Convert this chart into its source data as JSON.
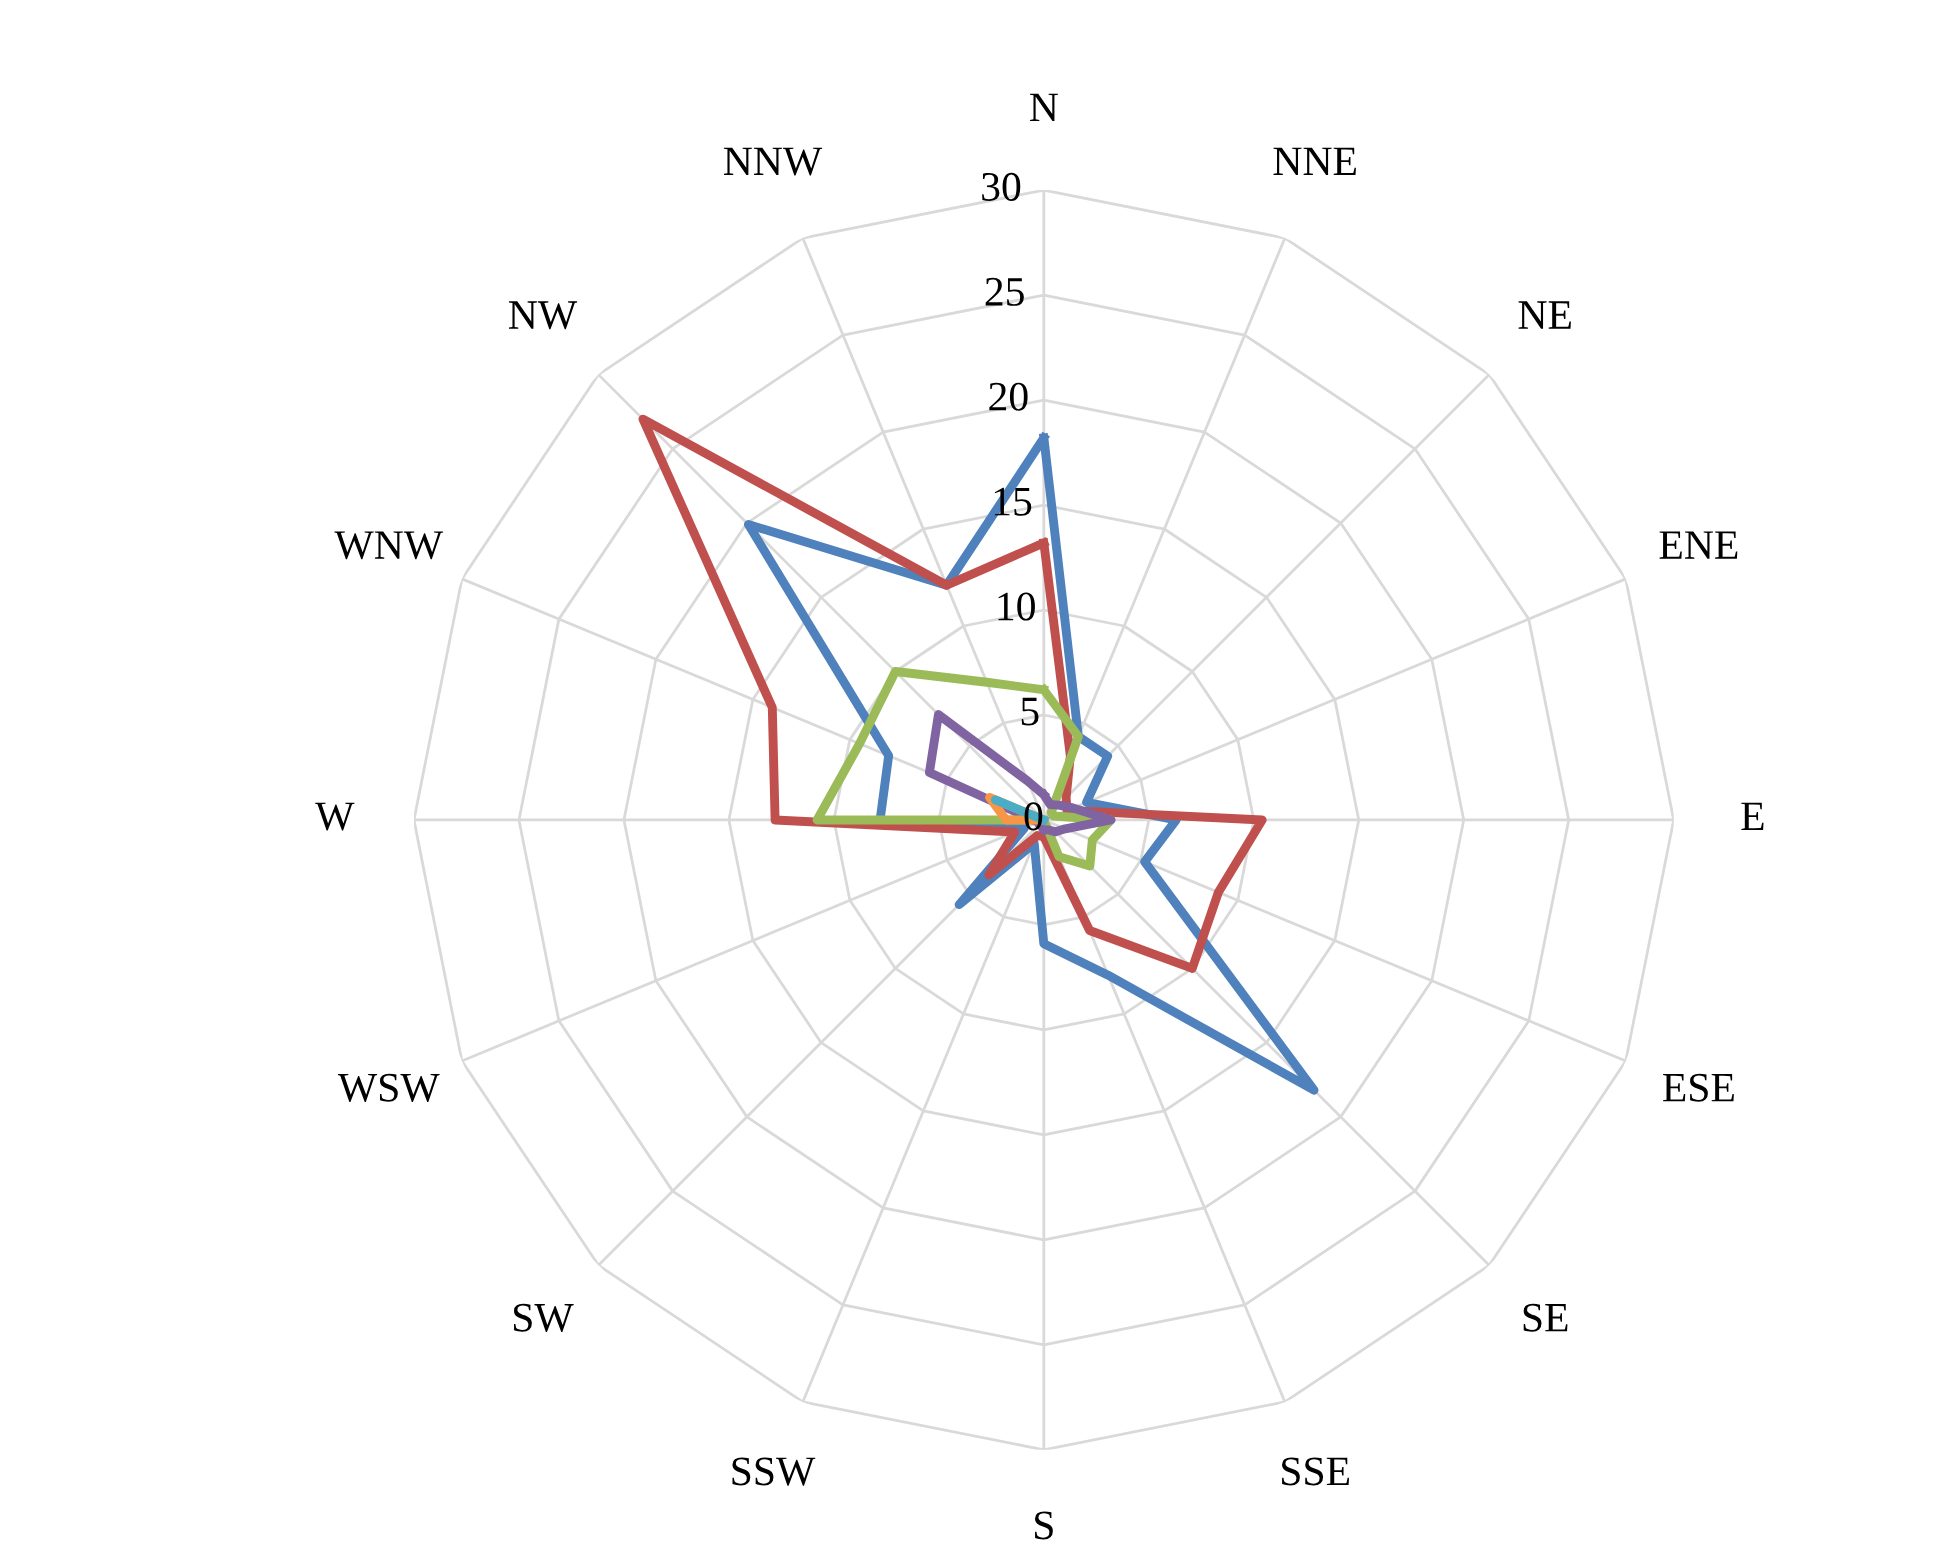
{
  "chart_data": {
    "type": "radar",
    "categories": [
      "N",
      "NNE",
      "NE",
      "ENE",
      "E",
      "ESE",
      "SE",
      "SSE",
      "S",
      "SSW",
      "SW",
      "WSW",
      "W",
      "WNW",
      "NW",
      "NNW"
    ],
    "ylim": [
      0,
      30
    ],
    "yticks": [
      0,
      5,
      10,
      15,
      20,
      25,
      30
    ],
    "grid": true,
    "marker": "none",
    "line_style": "solid",
    "series": [
      {
        "color": "#4f81bd",
        "values": [
          18.2,
          4.3,
          4.3,
          2.2,
          6.3,
          5.2,
          18.2,
          8.0,
          5.9,
          1.2,
          5.7,
          1.0,
          7.8,
          8.0,
          19.9,
          12.1
        ]
      },
      {
        "color": "#c0504d",
        "values": [
          13.2,
          3.3,
          1.5,
          1.2,
          10.4,
          9.0,
          10.0,
          5.7,
          0.8,
          0.8,
          3.7,
          1.5,
          12.8,
          14.0,
          27.0,
          12.1
        ]
      },
      {
        "color": "#9bbb59",
        "values": [
          6.2,
          4.3,
          0.5,
          0.5,
          3.2,
          2.5,
          3.1,
          1.9,
          0,
          0,
          0,
          0,
          10.8,
          9.5,
          10.0,
          7.1
        ]
      },
      {
        "color": "#8064a2",
        "values": [
          1.2,
          0.8,
          1.0,
          1.5,
          3.2,
          1.1,
          0.8,
          0.5,
          0.5,
          0.3,
          0.3,
          0.3,
          0.5,
          5.9,
          7.1,
          2.0
        ]
      },
      {
        "color": "#f79646",
        "values": [
          0,
          0,
          0,
          0,
          0,
          0,
          0,
          0,
          0,
          0,
          0,
          0,
          1.8,
          2.8,
          0,
          0
        ]
      },
      {
        "color": "#4bacc6",
        "values": [
          0,
          0,
          0,
          0,
          0,
          0,
          0,
          0,
          0,
          0,
          0,
          0,
          0,
          2.5,
          0,
          0
        ]
      }
    ]
  }
}
